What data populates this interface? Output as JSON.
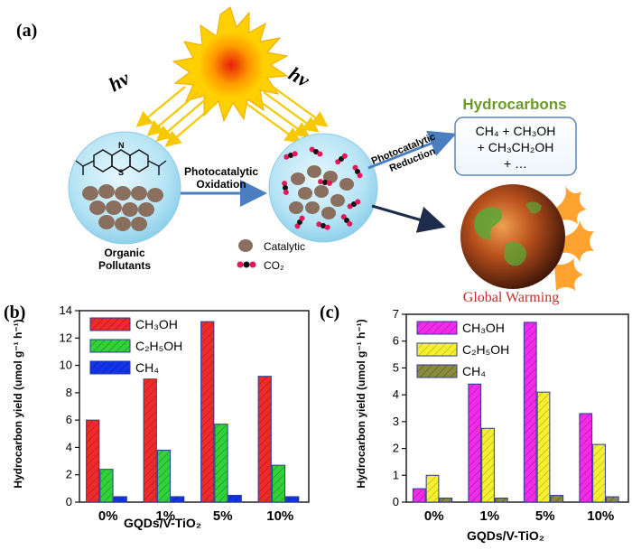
{
  "panel_a": {
    "label": "(a)",
    "hv_left": "hν",
    "hv_right": "hν",
    "oxidation_line1": "Photocatalytic",
    "oxidation_line2": "Oxidation",
    "reduction_line1": "Photocatalytic",
    "reduction_line2": "Reduction",
    "hydrocarbons_title": "Hydrocarbons",
    "products_line1": "CH₄ + CH₃OH",
    "products_line2": "+ CH₃CH₂OH",
    "products_line3": "+ …",
    "organic_line1": "Organic",
    "organic_line2": "Pollutants",
    "catalytic_label": "Catalytic",
    "co2_label": "CO₂",
    "global_warming": "Global Warming",
    "molecule_s": "S",
    "molecule_n": "N",
    "colors": {
      "hydrocarbons": "#6a9a2a",
      "global_warming": "#c0302a",
      "particle": "#8a6f5e",
      "co2_red": "#e8155a",
      "arrow_blue": "#4a7ec0",
      "sphere": "#aee0f2",
      "rays": "#f5c800"
    }
  },
  "chart_data": [
    {
      "panel": "(b)",
      "type": "bar",
      "ylabel": "Hydrocarbon yield (umol g⁻¹ h⁻¹)",
      "xlabel": "GQDs/V-TiO₂",
      "categories": [
        "0%",
        "1%",
        "5%",
        "10%"
      ],
      "ylim": [
        0,
        14
      ],
      "yticks": [
        "0",
        "2",
        "4",
        "6",
        "8",
        "10",
        "12",
        "14"
      ],
      "series": [
        {
          "name": "CH₃OH",
          "values": [
            6.0,
            9.0,
            13.2,
            9.2
          ],
          "color": "#ee2b2b"
        },
        {
          "name": "C₂H₅OH",
          "values": [
            2.4,
            3.8,
            5.7,
            2.7
          ],
          "color": "#33d03a"
        },
        {
          "name": "CH₄",
          "values": [
            0.4,
            0.4,
            0.5,
            0.4
          ],
          "color": "#1234e8"
        }
      ]
    },
    {
      "panel": "(c)",
      "type": "bar",
      "ylabel": "Hydrocarbon yield (umol g⁻¹ h⁻¹)",
      "xlabel": "GQDs/V-TiO₂",
      "categories": [
        "0%",
        "1%",
        "5%",
        "10%"
      ],
      "ylim": [
        0,
        7
      ],
      "yticks": [
        "0",
        "1",
        "2",
        "3",
        "4",
        "5",
        "6",
        "7"
      ],
      "series": [
        {
          "name": "CH₃OH",
          "values": [
            0.5,
            4.4,
            6.7,
            3.3
          ],
          "color": "#f02ce8"
        },
        {
          "name": "C₂H₅OH",
          "values": [
            1.0,
            2.75,
            4.1,
            2.15
          ],
          "color": "#f4f030"
        },
        {
          "name": "CH₄",
          "values": [
            0.15,
            0.15,
            0.25,
            0.2
          ],
          "color": "#8a8a40"
        }
      ]
    }
  ]
}
